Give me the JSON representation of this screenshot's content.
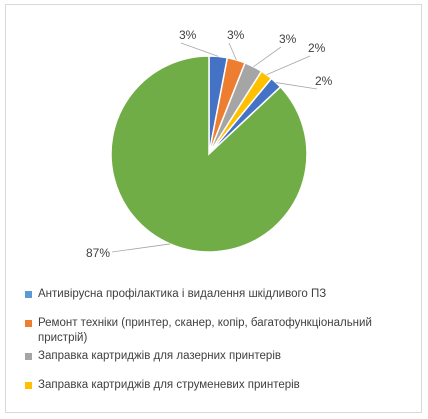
{
  "chart_data": {
    "type": "pie",
    "start_angle_deg": 0,
    "direction": "clockwise",
    "slices": [
      {
        "label": "Антивірусна профілактика  і видалення шкідливого ПЗ",
        "value": 3,
        "value_label": "3%",
        "color": "#4472C4"
      },
      {
        "label": "Ремонт техніки (принтер, сканер, копір, багатофункціональний пристрій)",
        "value": 3,
        "value_label": "3%",
        "color": "#ED7D31"
      },
      {
        "label": "Заправка картриджів  для лазерних принтерів",
        "value": 3,
        "value_label": "3%",
        "color": "#A5A5A5"
      },
      {
        "label": "Заправка картриджів  для струменевих принтерів",
        "value": 2,
        "value_label": "2%",
        "color": "#FFC000"
      },
      {
        "label": "",
        "value": 2,
        "value_label": "2%",
        "color": "#4472C4"
      },
      {
        "label": "",
        "value": 87,
        "value_label": "87%",
        "color": "#70AD47"
      }
    ],
    "legend": {
      "position": "bottom",
      "items": [
        {
          "label": "Антивірусна профілактика  і видалення шкідливого ПЗ",
          "color": "#5B9BD5"
        },
        {
          "label": "Ремонт техніки (принтер, сканер, копір, багатофункціональний пристрій)",
          "color": "#ED7D31"
        },
        {
          "label": "Заправка картриджів  для лазерних принтерів",
          "color": "#A5A5A5"
        },
        {
          "label": "Заправка картриджів  для струменевих принтерів",
          "color": "#FFC000"
        }
      ]
    }
  }
}
